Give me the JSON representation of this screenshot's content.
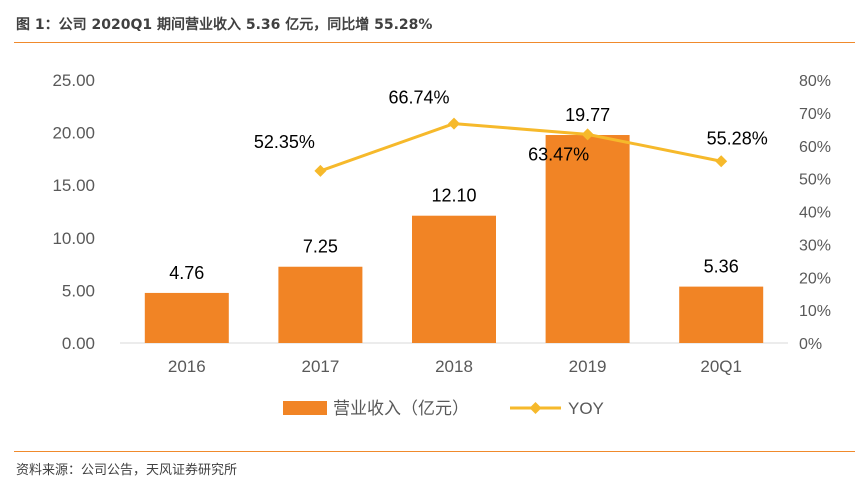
{
  "header": {
    "title": "图 1：公司 2020Q1 期间营业收入 5.36 亿元，同比增 55.28%"
  },
  "footer": {
    "source": "资料来源：公司公告，天风证券研究所"
  },
  "colors": {
    "bar": "#f18425",
    "line": "#f6b92b",
    "rule": "#f08a2c",
    "axis": "#d9d9d9",
    "text": "#595959"
  },
  "chart_data": {
    "type": "bar",
    "title": "",
    "categories": [
      "2016",
      "2017",
      "2018",
      "2019",
      "20Q1"
    ],
    "series": [
      {
        "name": "营业收入（亿元）",
        "type": "bar",
        "axis": "left",
        "values": [
          4.76,
          7.25,
          12.1,
          19.77,
          5.36
        ],
        "labels": [
          "4.76",
          "7.25",
          "12.10",
          "19.77",
          "5.36"
        ]
      },
      {
        "name": "YOY",
        "type": "line",
        "axis": "right",
        "values": [
          null,
          52.35,
          66.74,
          63.47,
          55.28
        ],
        "labels": [
          "",
          "52.35%",
          "66.74%",
          "63.47%",
          "55.28%"
        ]
      }
    ],
    "y_left": {
      "min": 0,
      "max": 25,
      "step": 5,
      "ticks": [
        "0.00",
        "5.00",
        "10.00",
        "15.00",
        "20.00",
        "25.00"
      ]
    },
    "y_right": {
      "min": 0,
      "max": 80,
      "step": 10,
      "ticks": [
        "0%",
        "10%",
        "20%",
        "30%",
        "40%",
        "50%",
        "60%",
        "70%",
        "80%"
      ]
    },
    "grid": false,
    "legend": "bottom"
  }
}
